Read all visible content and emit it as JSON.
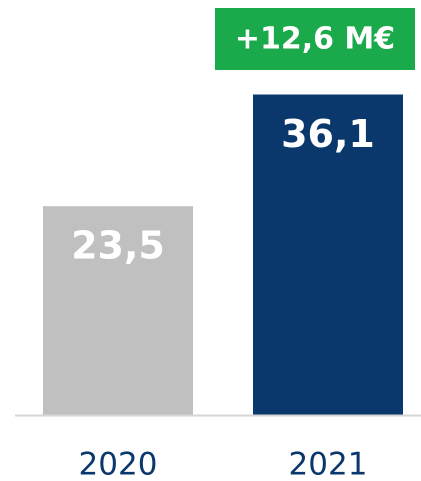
{
  "chart_data": {
    "type": "bar",
    "categories": [
      "2020",
      "2021"
    ],
    "values": [
      23.5,
      36.1
    ],
    "value_labels": [
      "23,5",
      "36,1"
    ],
    "colors": [
      "#c0c0c0",
      "#0b386c"
    ],
    "annotation": "+12,6 M€",
    "annotation_color": "#1aaa4b"
  }
}
